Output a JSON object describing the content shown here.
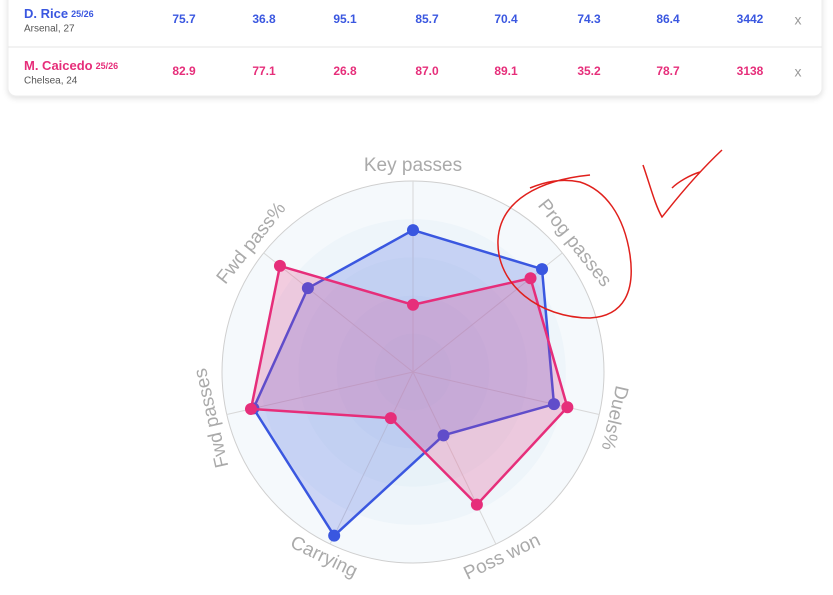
{
  "table": {
    "rows": [
      {
        "name": "D. Rice",
        "season": "25/26",
        "club": "Arsenal, 27",
        "color": "#3a57e0",
        "values": [
          "75.7",
          "36.8",
          "95.1",
          "85.7",
          "70.4",
          "74.3",
          "86.4",
          "3442"
        ],
        "remove": "x"
      },
      {
        "name": "M. Caicedo",
        "season": "25/26",
        "club": "Chelsea, 24",
        "color": "#e62e7a",
        "values": [
          "82.9",
          "77.1",
          "26.8",
          "87.0",
          "89.1",
          "35.2",
          "78.7",
          "3138"
        ],
        "remove": "x"
      }
    ]
  },
  "chart_data": {
    "type": "radar",
    "categories": [
      "Key passes",
      "Prog passes",
      "Duels%",
      "Poss won",
      "Carrying",
      "Fwd passes",
      "Fwd pass%"
    ],
    "rlim": [
      0,
      100
    ],
    "rticks": [
      20,
      40,
      60,
      80,
      100
    ],
    "series": [
      {
        "color": "#3a57e0",
        "values": [
          74.3,
          86.4,
          75.7,
          36.8,
          95.1,
          85.7,
          70.4
        ]
      },
      {
        "color": "#e62e7a",
        "values": [
          35.2,
          78.7,
          82.9,
          77.1,
          26.8,
          87.0,
          89.1
        ]
      }
    ]
  }
}
